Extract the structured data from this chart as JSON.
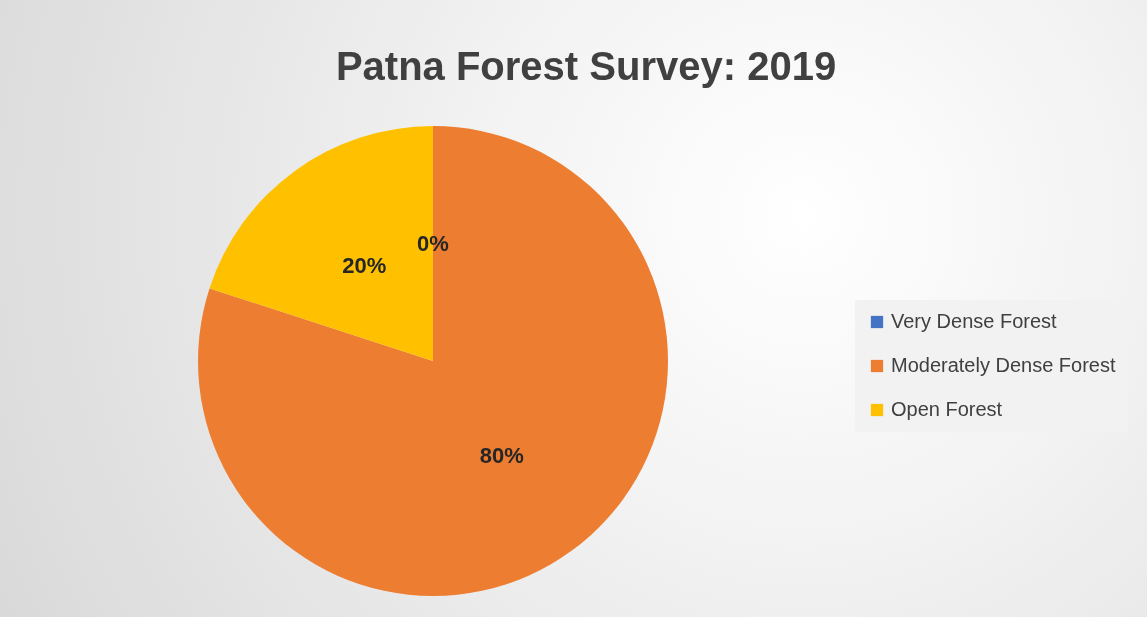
{
  "chart_data": {
    "type": "pie",
    "title": "Patna Forest Survey: 2019",
    "categories": [
      "Very Dense Forest",
      "Moderately Dense Forest",
      "Open Forest"
    ],
    "values": [
      0,
      80,
      20
    ],
    "colors": [
      "#4472c4",
      "#ed7d31",
      "#ffc000"
    ],
    "value_labels": [
      "0%",
      "80%",
      "20%"
    ],
    "legend": "right"
  }
}
